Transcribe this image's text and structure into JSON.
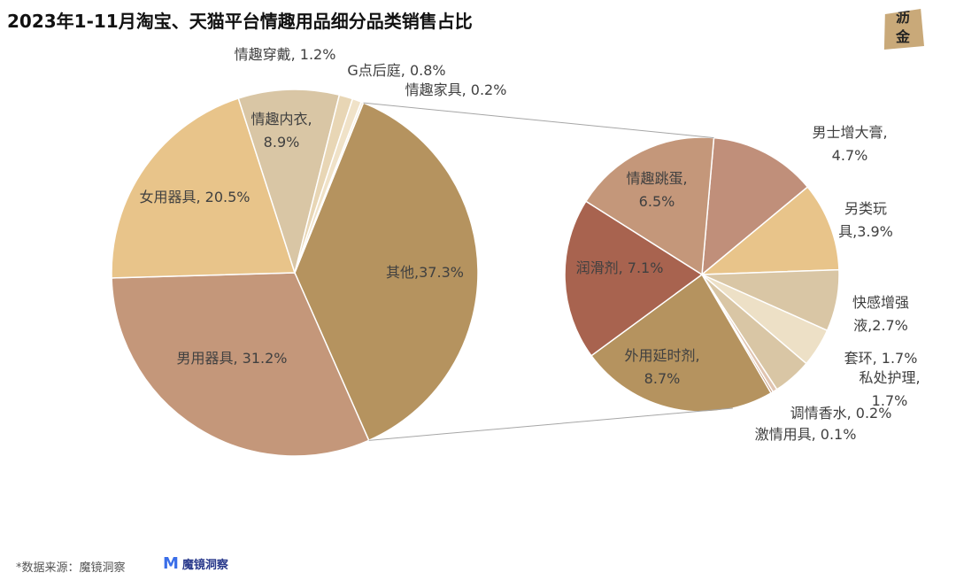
{
  "chart_data": {
    "type": "pie-of-pie",
    "title": "2023年1-11月淘宝、天猫平台情趣用品细分品类销售占比",
    "source": "*数据来源：魔镜洞察",
    "logo": "沥\n金",
    "brand": "魔镜洞察",
    "main": {
      "values": [
        37.3,
        31.2,
        20.5,
        8.9,
        1.2,
        0.8,
        0.2
      ],
      "value_labels": [
        "其他,37.3%",
        "男用器具, 31.2%",
        "女用器具, 20.5%",
        "情趣内衣,\n8.9%",
        "情趣穿戴, 1.2%",
        "G点后庭, 0.8%",
        "情趣家具, 0.2%"
      ],
      "colors": [
        "#b5935f",
        "#c4977a",
        "#e8c48a",
        "#d9c6a5",
        "#e8d6b5",
        "#f0e2c8",
        "#f5ecdc"
      ]
    },
    "detail": {
      "values": [
        4.7,
        3.9,
        2.7,
        1.7,
        1.7,
        0.2,
        0.1,
        8.7,
        7.1,
        6.5
      ],
      "value_labels": [
        "男士增大膏, 4.7%",
        "另类玩具,3.9%",
        "快感增强液,2.7%",
        "套环, 1.7%",
        "私处护理, 1.7%",
        "调情香水, 0.2%",
        "激情用具, 0.1%",
        "外用延时剂,\n8.7%",
        "润滑剂, 7.1%",
        "情趣跳蛋,\n6.5%"
      ],
      "colors": [
        "#c08f7a",
        "#e8c48a",
        "#d9c6a5",
        "#ede0c6",
        "#d9c6a5",
        "#e0c4b0",
        "#c4977a",
        "#b5935f",
        "#a8634f",
        "#c4977a"
      ]
    }
  }
}
